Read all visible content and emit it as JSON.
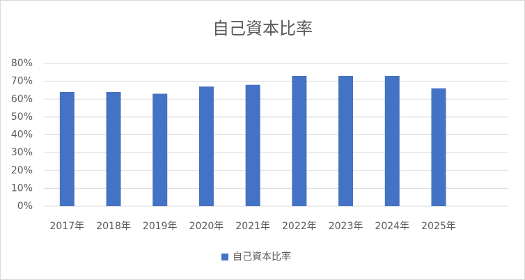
{
  "chart_data": {
    "type": "bar",
    "title": "自己資本比率",
    "categories": [
      "2017年",
      "2018年",
      "2019年",
      "2020年",
      "2021年",
      "2022年",
      "2023年",
      "2024年",
      "2025年",
      null
    ],
    "series": [
      {
        "name": "自己資本比率",
        "color": "#4472c4",
        "values": [
          64,
          64,
          63,
          67,
          68,
          73,
          73,
          73,
          66,
          null
        ]
      }
    ],
    "ylim": [
      0,
      80
    ],
    "yticks": [
      {
        "value": 0,
        "label": "0%"
      },
      {
        "value": 10,
        "label": "10%"
      },
      {
        "value": 20,
        "label": "20%"
      },
      {
        "value": 30,
        "label": "30%"
      },
      {
        "value": 40,
        "label": "40%"
      },
      {
        "value": 50,
        "label": "50%"
      },
      {
        "value": 60,
        "label": "60%"
      },
      {
        "value": 70,
        "label": "70%"
      },
      {
        "value": 80,
        "label": "80%"
      }
    ],
    "grid": true,
    "legend": "bottom"
  }
}
